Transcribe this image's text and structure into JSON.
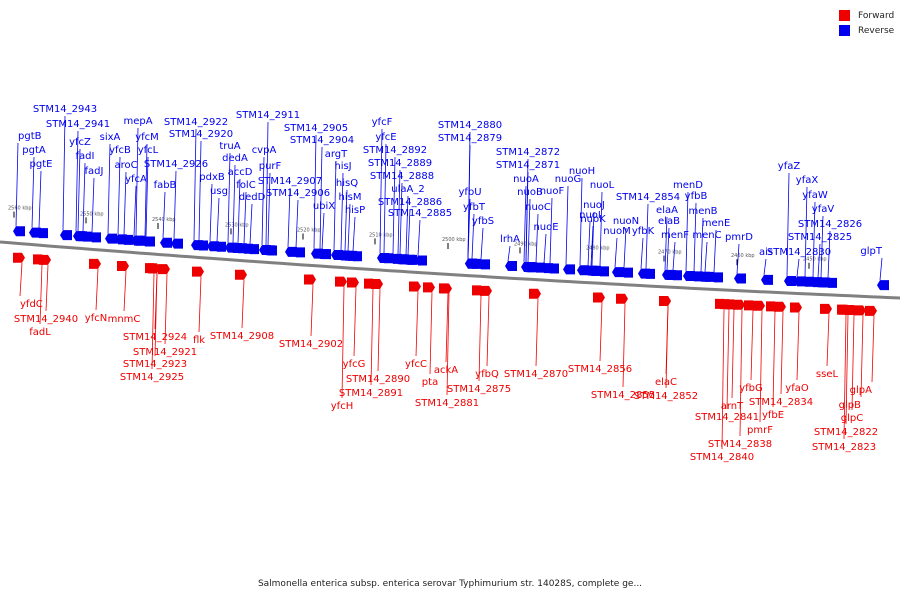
{
  "caption": "Salmonella enterica subsp. enterica serovar Typhimurium str. 14028S, complete ge...",
  "legend": [
    {
      "label": "Forward",
      "color": "#ee0000"
    },
    {
      "label": "Reverse",
      "color": "#0000ee"
    }
  ],
  "colors": {
    "forward": "#ee0000",
    "reverse": "#0000ee",
    "axis": "#808080"
  },
  "ticks": [
    "2560 kbp",
    "2550 kbp",
    "2540 kbp",
    "2530 kbp",
    "2520 kbp",
    "2510 kbp",
    "2500 kbp",
    "2490 kbp",
    "2480 kbp",
    "2470 kbp",
    "2460 kbp",
    "2450 kbp"
  ],
  "reverse_genes": [
    "STM14_2943",
    "pgtB",
    "STM14_2941",
    "pgtA",
    "yfcZ",
    "pgtE",
    "fadI",
    "fadJ",
    "sixA",
    "yfcB",
    "aroC",
    "mepA",
    "yfcM",
    "yfcL",
    "yfcA",
    "STM14_2926",
    "fabB",
    "STM14_2922",
    "STM14_2920",
    "truA",
    "pdxB",
    "dedA",
    "usg",
    "accD",
    "folC",
    "dedD",
    "STM14_2911",
    "cvpA",
    "purF",
    "STM14_2907",
    "STM14_2906",
    "STM14_2905",
    "STM14_2904",
    "argT",
    "hisJ",
    "ubiX",
    "hisQ",
    "hisM",
    "hisP",
    "yfcF",
    "yfcE",
    "STM14_2892",
    "STM14_2889",
    "STM14_2888",
    "ulaA_2",
    "STM14_2886",
    "STM14_2885",
    "STM14_2880",
    "STM14_2879",
    "yfbU",
    "yfbT",
    "yfbS",
    "lrhA",
    "STM14_2872",
    "STM14_2871",
    "nuoA",
    "nuoB",
    "nuoC",
    "nuoE",
    "nuoF",
    "nuoG",
    "nuoH",
    "nuoI",
    "nuoJ",
    "nuoK",
    "nuoL",
    "nuoM",
    "nuoN",
    "STM14_2854",
    "yfbK",
    "elaA",
    "elaB",
    "menF",
    "menD",
    "yfbB",
    "menB",
    "menE",
    "menC",
    "pmrD",
    "ais",
    "yfaZ",
    "STM14_2830",
    "yfaX",
    "yfaW",
    "yfaV",
    "STM14_2826",
    "STM14_2825",
    "glpT"
  ],
  "forward_genes": [
    "yfdC",
    "STM14_2940",
    "fadL",
    "yfcN",
    "mnmC",
    "STM14_2924",
    "STM14_2921",
    "STM14_2923",
    "STM14_2925",
    "flk",
    "STM14_2908",
    "STM14_2902",
    "yfcG",
    "STM14_2890",
    "yfcH",
    "STM14_2891",
    "yfcC",
    "pta",
    "ackA",
    "STM14_2881",
    "yfbQ",
    "STM14_2875",
    "STM14_2870",
    "STM14_2856",
    "STM14_2855",
    "STM14_2852",
    "elaC",
    "STM14_2841",
    "arnT",
    "STM14_2838",
    "STM14_2840",
    "yfbG",
    "pmrF",
    "yfbE",
    "STM14_2834",
    "yfaO",
    "sseL",
    "STM14_2822",
    "STM14_2823",
    "glpC",
    "glpB",
    "glpA"
  ]
}
